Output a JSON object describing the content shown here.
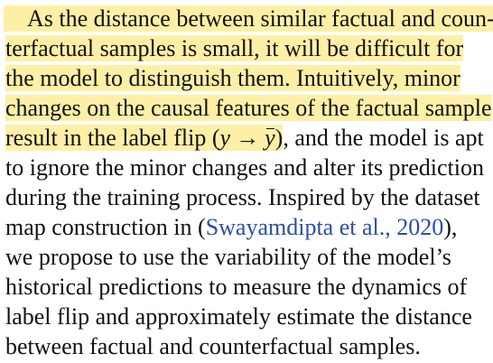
{
  "highlight_color": "#fdf0a6",
  "citation_color": "#2a4fa8",
  "paragraph": {
    "line1": "As the distance between similar factual and coun-",
    "line2": "terfactual samples is small, it will be difficult for",
    "line3": "the model to distinguish them. Intuitively, minor",
    "line4": "changes on the causal features of the factual sample",
    "line5_start": "result in the label flip (",
    "line5_math_y": "y",
    "line5_math_arrow": "→",
    "line5_math_ybar": "y",
    "line5_close": ")",
    "line5_rest": ", and the model is apt",
    "line6": "to ignore the minor changes and alter its prediction",
    "line7": "during the training process. Inspired by the dataset",
    "line8_start": "map construction in (",
    "line8_citation": "Swayamdipta et al., 2020",
    "line8_end": "),",
    "line9": "we propose to use the variability of the model’s",
    "line10": "historical predictions to measure the dynamics of",
    "line11": "label flip and approximately estimate the distance",
    "line12": "between factual and counterfactual samples."
  }
}
